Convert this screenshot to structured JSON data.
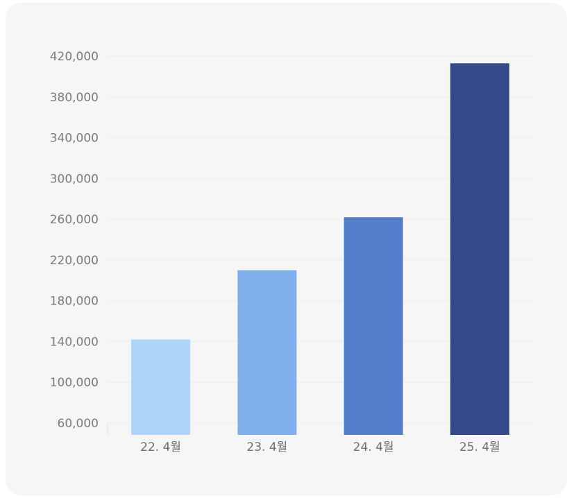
{
  "chart_data": {
    "type": "bar",
    "categories": [
      "22. 4월",
      "23. 4월",
      "24. 4월",
      "25. 4월"
    ],
    "values": [
      142000,
      210000,
      262000,
      413000
    ],
    "colors": [
      "#aed3f8",
      "#80b1ef",
      "#527ecc",
      "#35488c"
    ],
    "yticks": [
      "420,000",
      "380,000",
      "340,000",
      "300,000",
      "260,000",
      "220,000",
      "180,000",
      "140,000",
      "100,000",
      "60,000"
    ],
    "ylim": [
      60000,
      420000
    ],
    "grid": true
  }
}
